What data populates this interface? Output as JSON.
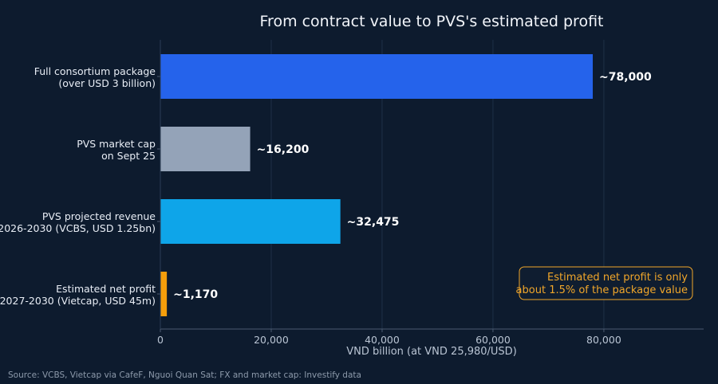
{
  "chart_data": {
    "type": "bar",
    "orientation": "horizontal",
    "title": "From contract value to PVS's estimated profit",
    "xlabel": "VND billion (at VND 25,980/USD)",
    "ylabel": "",
    "xlim": [
      0,
      98000
    ],
    "xticks": [
      0,
      20000,
      40000,
      60000,
      80000
    ],
    "xtick_labels": [
      "0",
      "20,000",
      "40,000",
      "60,000",
      "80,000"
    ],
    "grid": true,
    "categories": [
      [
        "Full consortium package",
        "(over USD 3 billion)"
      ],
      [
        "PVS market cap",
        "on Sept 25"
      ],
      [
        "PVS projected revenue",
        "2026-2030 (VCBS, USD 1.25bn)"
      ],
      [
        "Estimated net profit",
        "2027-2030 (Vietcap, USD 45m)"
      ]
    ],
    "values": [
      78000,
      16200,
      32475,
      1170
    ],
    "value_labels": [
      "~78,000",
      "~16,200",
      "~32,475",
      "~1,170"
    ],
    "bar_colors": [
      "#2563eb",
      "#94a3b8",
      "#0ea5e9",
      "#f59e0b"
    ],
    "annotation": [
      "Estimated net profit is only",
      "about 1.5% of the package value"
    ],
    "annotation_color": "#f0a62a",
    "source": "Source: VCBS, Vietcap via CafeF, Nguoi Quan Sat; FX and market cap: Investify data"
  }
}
